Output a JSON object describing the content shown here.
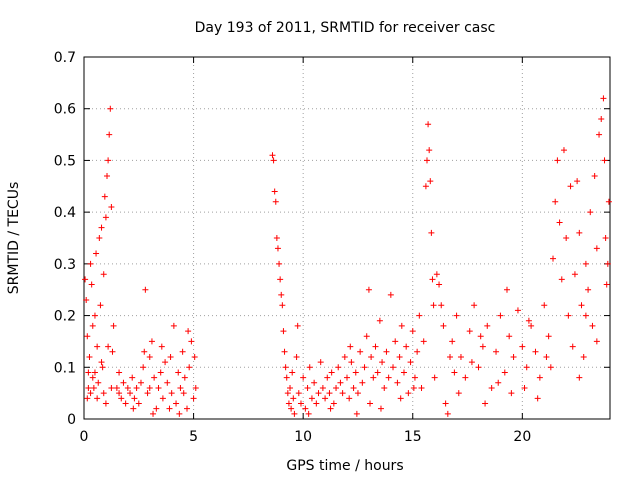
{
  "chart_data": {
    "type": "scatter",
    "title": "Day 193 of 2011, SRMTID for receiver casc",
    "xlabel": "GPS time / hours",
    "ylabel": "SRMTID / TECUs",
    "xlim": [
      0,
      24
    ],
    "ylim": [
      0,
      0.7
    ],
    "xticks": [
      0,
      5,
      10,
      15,
      20
    ],
    "yticks": [
      0,
      0.1,
      0.2,
      0.3,
      0.4,
      0.5,
      0.6,
      0.7
    ],
    "grid": true,
    "marker": "+",
    "color": "#ff0000",
    "series": [
      {
        "name": "SRMTID",
        "points": [
          [
            0.05,
            0.27
          ],
          [
            0.1,
            0.23
          ],
          [
            0.15,
            0.16
          ],
          [
            0.2,
            0.09
          ],
          [
            0.25,
            0.12
          ],
          [
            0.3,
            0.3
          ],
          [
            0.35,
            0.26
          ],
          [
            0.4,
            0.08
          ],
          [
            0.45,
            0.06
          ],
          [
            0.5,
            0.2
          ],
          [
            0.55,
            0.32
          ],
          [
            0.6,
            0.14
          ],
          [
            0.65,
            0.07
          ],
          [
            0.7,
            0.35
          ],
          [
            0.75,
            0.22
          ],
          [
            0.8,
            0.37
          ],
          [
            0.85,
            0.1
          ],
          [
            0.9,
            0.28
          ],
          [
            0.95,
            0.43
          ],
          [
            1.0,
            0.39
          ],
          [
            1.05,
            0.47
          ],
          [
            1.1,
            0.5
          ],
          [
            1.15,
            0.55
          ],
          [
            1.2,
            0.6
          ],
          [
            1.25,
            0.41
          ],
          [
            1.3,
            0.13
          ],
          [
            1.35,
            0.18
          ],
          [
            0.3,
            0.05
          ],
          [
            0.6,
            0.04
          ],
          [
            1.0,
            0.03
          ],
          [
            0.2,
            0.06
          ],
          [
            0.5,
            0.09
          ],
          [
            0.8,
            0.11
          ],
          [
            1.1,
            0.14
          ],
          [
            0.4,
            0.18
          ],
          [
            0.15,
            0.04
          ],
          [
            1.25,
            0.06
          ],
          [
            0.9,
            0.05
          ],
          [
            1.5,
            0.06
          ],
          [
            1.6,
            0.05
          ],
          [
            1.7,
            0.04
          ],
          [
            1.8,
            0.07
          ],
          [
            1.9,
            0.03
          ],
          [
            2.0,
            0.06
          ],
          [
            2.1,
            0.05
          ],
          [
            2.2,
            0.08
          ],
          [
            2.3,
            0.04
          ],
          [
            2.4,
            0.06
          ],
          [
            2.5,
            0.03
          ],
          [
            2.6,
            0.07
          ],
          [
            2.7,
            0.1
          ],
          [
            2.8,
            0.25
          ],
          [
            2.9,
            0.05
          ],
          [
            3.0,
            0.12
          ],
          [
            3.1,
            0.15
          ],
          [
            3.2,
            0.08
          ],
          [
            3.3,
            0.02
          ],
          [
            3.4,
            0.06
          ],
          [
            3.5,
            0.09
          ],
          [
            3.6,
            0.04
          ],
          [
            3.7,
            0.11
          ],
          [
            3.8,
            0.07
          ],
          [
            3.9,
            0.02
          ],
          [
            4.0,
            0.05
          ],
          [
            4.1,
            0.18
          ],
          [
            4.2,
            0.03
          ],
          [
            4.3,
            0.09
          ],
          [
            4.4,
            0.06
          ],
          [
            4.5,
            0.13
          ],
          [
            4.6,
            0.08
          ],
          [
            4.7,
            0.02
          ],
          [
            4.8,
            0.1
          ],
          [
            4.9,
            0.15
          ],
          [
            5.0,
            0.04
          ],
          [
            5.1,
            0.06
          ],
          [
            1.6,
            0.09
          ],
          [
            2.25,
            0.02
          ],
          [
            2.75,
            0.13
          ],
          [
            3.15,
            0.01
          ],
          [
            3.55,
            0.14
          ],
          [
            3.95,
            0.12
          ],
          [
            4.35,
            0.01
          ],
          [
            4.75,
            0.17
          ],
          [
            5.05,
            0.12
          ],
          [
            3.0,
            0.06
          ],
          [
            4.55,
            0.05
          ],
          [
            8.6,
            0.51
          ],
          [
            8.65,
            0.5
          ],
          [
            8.7,
            0.44
          ],
          [
            8.75,
            0.42
          ],
          [
            8.8,
            0.35
          ],
          [
            8.85,
            0.33
          ],
          [
            8.9,
            0.3
          ],
          [
            8.95,
            0.27
          ],
          [
            9.0,
            0.24
          ],
          [
            9.05,
            0.22
          ],
          [
            9.1,
            0.17
          ],
          [
            9.15,
            0.13
          ],
          [
            9.2,
            0.1
          ],
          [
            9.25,
            0.08
          ],
          [
            9.3,
            0.05
          ],
          [
            9.35,
            0.03
          ],
          [
            9.4,
            0.06
          ],
          [
            9.45,
            0.02
          ],
          [
            9.5,
            0.09
          ],
          [
            9.55,
            0.04
          ],
          [
            9.6,
            0.01
          ],
          [
            9.7,
            0.12
          ],
          [
            9.8,
            0.05
          ],
          [
            9.9,
            0.03
          ],
          [
            10.0,
            0.08
          ],
          [
            10.1,
            0.02
          ],
          [
            10.2,
            0.06
          ],
          [
            10.3,
            0.1
          ],
          [
            10.4,
            0.04
          ],
          [
            10.5,
            0.07
          ],
          [
            10.6,
            0.03
          ],
          [
            10.7,
            0.05
          ],
          [
            10.8,
            0.11
          ],
          [
            10.9,
            0.06
          ],
          [
            11.0,
            0.04
          ],
          [
            11.1,
            0.08
          ],
          [
            11.2,
            0.05
          ],
          [
            11.3,
            0.09
          ],
          [
            11.4,
            0.03
          ],
          [
            11.5,
            0.06
          ],
          [
            11.6,
            0.1
          ],
          [
            11.7,
            0.07
          ],
          [
            11.8,
            0.05
          ],
          [
            11.9,
            0.12
          ],
          [
            12.0,
            0.08
          ],
          [
            12.1,
            0.04
          ],
          [
            12.2,
            0.11
          ],
          [
            12.3,
            0.06
          ],
          [
            12.4,
            0.09
          ],
          [
            12.5,
            0.05
          ],
          [
            12.6,
            0.13
          ],
          [
            12.7,
            0.07
          ],
          [
            12.8,
            0.1
          ],
          [
            12.9,
            0.16
          ],
          [
            13.0,
            0.25
          ],
          [
            13.1,
            0.12
          ],
          [
            13.2,
            0.08
          ],
          [
            13.3,
            0.14
          ],
          [
            13.4,
            0.09
          ],
          [
            13.5,
            0.19
          ],
          [
            13.6,
            0.11
          ],
          [
            13.7,
            0.06
          ],
          [
            13.8,
            0.13
          ],
          [
            13.9,
            0.08
          ],
          [
            14.0,
            0.24
          ],
          [
            14.1,
            0.1
          ],
          [
            14.2,
            0.15
          ],
          [
            14.3,
            0.07
          ],
          [
            14.4,
            0.12
          ],
          [
            14.5,
            0.18
          ],
          [
            14.6,
            0.09
          ],
          [
            14.7,
            0.14
          ],
          [
            14.8,
            0.05
          ],
          [
            14.9,
            0.11
          ],
          [
            15.0,
            0.17
          ],
          [
            15.1,
            0.08
          ],
          [
            15.2,
            0.13
          ],
          [
            15.3,
            0.2
          ],
          [
            15.4,
            0.06
          ],
          [
            15.5,
            0.15
          ],
          [
            15.6,
            0.45
          ],
          [
            15.65,
            0.5
          ],
          [
            15.7,
            0.57
          ],
          [
            15.75,
            0.52
          ],
          [
            15.8,
            0.46
          ],
          [
            15.85,
            0.36
          ],
          [
            15.9,
            0.27
          ],
          [
            15.95,
            0.22
          ],
          [
            16.0,
            0.08
          ],
          [
            16.1,
            0.28
          ],
          [
            16.2,
            0.26
          ],
          [
            16.3,
            0.22
          ],
          [
            16.4,
            0.18
          ],
          [
            16.5,
            0.03
          ],
          [
            16.6,
            0.01
          ],
          [
            16.7,
            0.12
          ],
          [
            9.75,
            0.18
          ],
          [
            10.25,
            0.01
          ],
          [
            11.25,
            0.02
          ],
          [
            12.45,
            0.01
          ],
          [
            13.05,
            0.03
          ],
          [
            13.55,
            0.02
          ],
          [
            14.45,
            0.04
          ],
          [
            15.05,
            0.06
          ],
          [
            12.15,
            0.14
          ],
          [
            16.8,
            0.15
          ],
          [
            17.0,
            0.2
          ],
          [
            17.2,
            0.12
          ],
          [
            17.4,
            0.08
          ],
          [
            17.6,
            0.17
          ],
          [
            17.8,
            0.22
          ],
          [
            18.0,
            0.1
          ],
          [
            18.2,
            0.14
          ],
          [
            18.4,
            0.18
          ],
          [
            18.6,
            0.06
          ],
          [
            18.8,
            0.13
          ],
          [
            19.0,
            0.2
          ],
          [
            19.2,
            0.09
          ],
          [
            19.4,
            0.16
          ],
          [
            19.6,
            0.12
          ],
          [
            19.8,
            0.21
          ],
          [
            20.0,
            0.14
          ],
          [
            20.2,
            0.1
          ],
          [
            20.4,
            0.18
          ],
          [
            20.6,
            0.13
          ],
          [
            20.8,
            0.08
          ],
          [
            21.0,
            0.22
          ],
          [
            21.2,
            0.16
          ],
          [
            21.4,
            0.31
          ],
          [
            21.5,
            0.42
          ],
          [
            21.6,
            0.5
          ],
          [
            21.7,
            0.38
          ],
          [
            21.8,
            0.27
          ],
          [
            21.9,
            0.52
          ],
          [
            22.0,
            0.35
          ],
          [
            22.1,
            0.2
          ],
          [
            22.2,
            0.45
          ],
          [
            22.3,
            0.14
          ],
          [
            22.4,
            0.28
          ],
          [
            22.5,
            0.46
          ],
          [
            22.6,
            0.36
          ],
          [
            22.7,
            0.22
          ],
          [
            22.8,
            0.12
          ],
          [
            22.9,
            0.3
          ],
          [
            23.0,
            0.25
          ],
          [
            23.1,
            0.4
          ],
          [
            23.2,
            0.18
          ],
          [
            23.3,
            0.47
          ],
          [
            23.4,
            0.33
          ],
          [
            23.5,
            0.55
          ],
          [
            23.6,
            0.58
          ],
          [
            23.7,
            0.62
          ],
          [
            23.75,
            0.5
          ],
          [
            23.8,
            0.35
          ],
          [
            23.85,
            0.26
          ],
          [
            23.9,
            0.3
          ],
          [
            23.95,
            0.42
          ],
          [
            17.1,
            0.05
          ],
          [
            17.7,
            0.11
          ],
          [
            18.3,
            0.03
          ],
          [
            18.9,
            0.07
          ],
          [
            19.5,
            0.05
          ],
          [
            20.1,
            0.06
          ],
          [
            20.7,
            0.04
          ],
          [
            21.3,
            0.1
          ],
          [
            22.6,
            0.08
          ],
          [
            23.4,
            0.15
          ],
          [
            19.3,
            0.25
          ],
          [
            16.9,
            0.09
          ],
          [
            18.1,
            0.16
          ],
          [
            20.3,
            0.19
          ],
          [
            21.1,
            0.12
          ],
          [
            22.9,
            0.2
          ]
        ]
      }
    ]
  }
}
